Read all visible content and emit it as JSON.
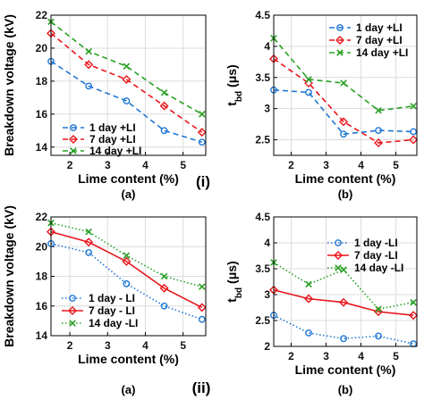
{
  "row_labels": [
    "(i)",
    "(ii)"
  ],
  "chart_data": [
    {
      "type": "line",
      "panel_label": "(a)",
      "xlabel": "Lime content (%)",
      "ylabel": "Breakdown voltage (kV)",
      "xlim": [
        1.5,
        5.6
      ],
      "ylim": [
        13.5,
        22
      ],
      "xticks": [
        2,
        3,
        4,
        5
      ],
      "yticks": [
        14,
        16,
        18,
        20,
        22
      ],
      "grid": true,
      "legend": "bottom-left",
      "x": [
        1.5,
        2.5,
        3.5,
        4.5,
        5.5
      ],
      "series": [
        {
          "name": "1 day +LI",
          "values": [
            19.2,
            17.7,
            16.8,
            15.0,
            14.3
          ],
          "color": "#1f77d4",
          "marker": "circle",
          "dash": "6,4"
        },
        {
          "name": "7 day +LI",
          "values": [
            20.9,
            19.0,
            18.1,
            16.5,
            14.9
          ],
          "color": "#e8151b",
          "marker": "diamond",
          "dash": "6,4"
        },
        {
          "name": "14 day +LI",
          "values": [
            21.6,
            19.8,
            18.9,
            17.3,
            16.0
          ],
          "color": "#27a023",
          "marker": "cross",
          "dash": "6,4"
        }
      ]
    },
    {
      "type": "line",
      "panel_label": "(b)",
      "xlabel": "Lime content (%)",
      "ylabel": "t_bd (μs)",
      "ylabel_main": "t",
      "ylabel_sub": "bd",
      "ylabel_unit": " (μs)",
      "xlim": [
        1.5,
        5.6
      ],
      "ylim": [
        2.25,
        4.5
      ],
      "xticks": [
        2,
        3,
        4,
        5
      ],
      "yticks": [
        2.5,
        3,
        3.5,
        4,
        4.5
      ],
      "grid": true,
      "legend": "top-right",
      "x": [
        1.5,
        2.5,
        3.5,
        4.5,
        5.5
      ],
      "series": [
        {
          "name": "1 day +LI",
          "values": [
            3.3,
            3.26,
            2.59,
            2.65,
            2.63
          ],
          "color": "#1f77d4",
          "marker": "circle",
          "dash": "6,4"
        },
        {
          "name": "7 day +LI",
          "values": [
            3.8,
            3.41,
            2.79,
            2.45,
            2.5
          ],
          "color": "#e8151b",
          "marker": "diamond",
          "dash": "6,4"
        },
        {
          "name": "14 day +LI",
          "values": [
            4.13,
            3.47,
            3.41,
            2.97,
            3.04
          ],
          "color": "#27a023",
          "marker": "cross",
          "dash": "6,4"
        }
      ]
    },
    {
      "type": "line",
      "panel_label": "(a)",
      "xlabel": "Lime content (%)",
      "ylabel": "Breakdown voltage (kV)",
      "xlim": [
        1.5,
        5.6
      ],
      "ylim": [
        14,
        22
      ],
      "xticks": [
        2,
        3,
        4,
        5
      ],
      "yticks": [
        14,
        16,
        18,
        20,
        22
      ],
      "grid": true,
      "legend": "bottom-left",
      "x": [
        1.5,
        2.5,
        3.5,
        4.5,
        5.5
      ],
      "series": [
        {
          "name": "1 day - LI",
          "values": [
            20.2,
            19.6,
            17.5,
            16.0,
            15.1
          ],
          "color": "#1f77d4",
          "marker": "circle",
          "dash": "1.5,2.5"
        },
        {
          "name": "7 day - LI",
          "values": [
            21.0,
            20.3,
            19.0,
            17.2,
            15.9
          ],
          "color": "#e8151b",
          "marker": "diamond",
          "dash": "none"
        },
        {
          "name": "14 day -LI",
          "values": [
            21.6,
            21.0,
            19.4,
            18.0,
            17.3
          ],
          "color": "#27a023",
          "marker": "cross",
          "dash": "1.5,2.5"
        }
      ]
    },
    {
      "type": "line",
      "panel_label": "(b)",
      "xlabel": "Lime content (%)",
      "ylabel": "t_bd (μs)",
      "ylabel_main": "t",
      "ylabel_sub": "bd",
      "ylabel_unit": " (μs)",
      "xlim": [
        1.5,
        5.6
      ],
      "ylim": [
        2,
        4.5
      ],
      "xticks": [
        2,
        3,
        4,
        5
      ],
      "yticks": [
        2,
        2.5,
        3,
        3.5,
        4,
        4.5
      ],
      "grid": true,
      "legend": "top-right",
      "x": [
        1.5,
        2.5,
        3.5,
        4.5,
        5.5
      ],
      "series": [
        {
          "name": "1 day -LI",
          "values": [
            2.6,
            2.26,
            2.15,
            2.2,
            2.05
          ],
          "color": "#1f77d4",
          "marker": "circle",
          "dash": "1.5,2.5"
        },
        {
          "name": "7 day -LI",
          "values": [
            3.09,
            2.92,
            2.85,
            2.67,
            2.6
          ],
          "color": "#e8151b",
          "marker": "diamond",
          "dash": "none"
        },
        {
          "name": "14 day -LI",
          "values": [
            3.62,
            3.2,
            3.48,
            2.72,
            2.85
          ],
          "color": "#27a023",
          "marker": "cross",
          "dash": "1.5,2.5"
        }
      ]
    }
  ]
}
